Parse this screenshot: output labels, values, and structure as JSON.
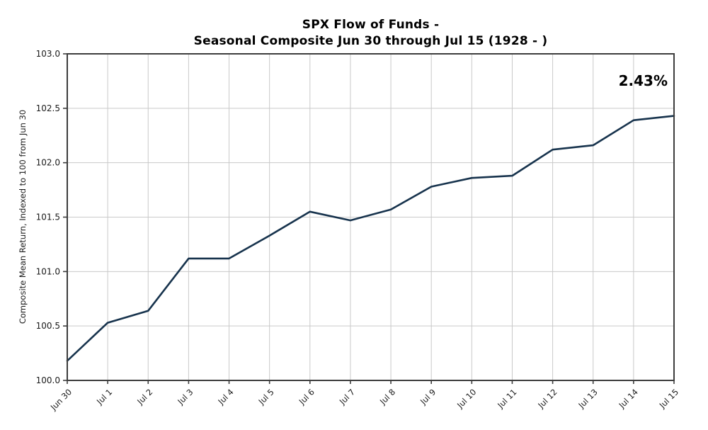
{
  "chart_data": {
    "type": "line",
    "title_line1": "SPX Flow of Funds -",
    "title_line2": "Seasonal Composite Jun 30 through Jul 15 (1928 - )",
    "title": "SPX Flow of Funds - Seasonal Composite Jun 30 through Jul 15 (1928 - )",
    "ylabel": "Composite Mean Return, Indexed to 100 from Jun 30",
    "xlabel": "",
    "categories": [
      "Jun 30",
      "Jul 1",
      "Jul 2",
      "Jul 3",
      "Jul 4",
      "Jul 5",
      "Jul 6",
      "Jul 7",
      "Jul 8",
      "Jul 9",
      "Jul 10",
      "Jul 11",
      "Jul 12",
      "Jul 13",
      "Jul 14",
      "Jul 15"
    ],
    "series": [
      {
        "name": "Composite Mean Return",
        "values": [
          100.18,
          100.53,
          100.64,
          101.12,
          101.12,
          101.33,
          101.55,
          101.47,
          101.57,
          101.78,
          101.86,
          101.88,
          102.12,
          102.16,
          102.39,
          102.43
        ]
      }
    ],
    "ylim": [
      100.0,
      103.0
    ],
    "yticks": [
      100.0,
      100.5,
      101.0,
      101.5,
      102.0,
      102.5,
      103.0
    ],
    "ytick_labels": [
      "100.0",
      "100.5",
      "101.0",
      "101.5",
      "102.0",
      "102.5",
      "103.0"
    ],
    "grid": true,
    "legend": "none",
    "annotation": "2.43%",
    "colors": {
      "line": "#17334d",
      "grid": "#c9c9c9",
      "spine": "#3d3d3d",
      "tick_text": "#1a1a1a",
      "title_text": "#000000",
      "background": "#ffffff"
    }
  }
}
